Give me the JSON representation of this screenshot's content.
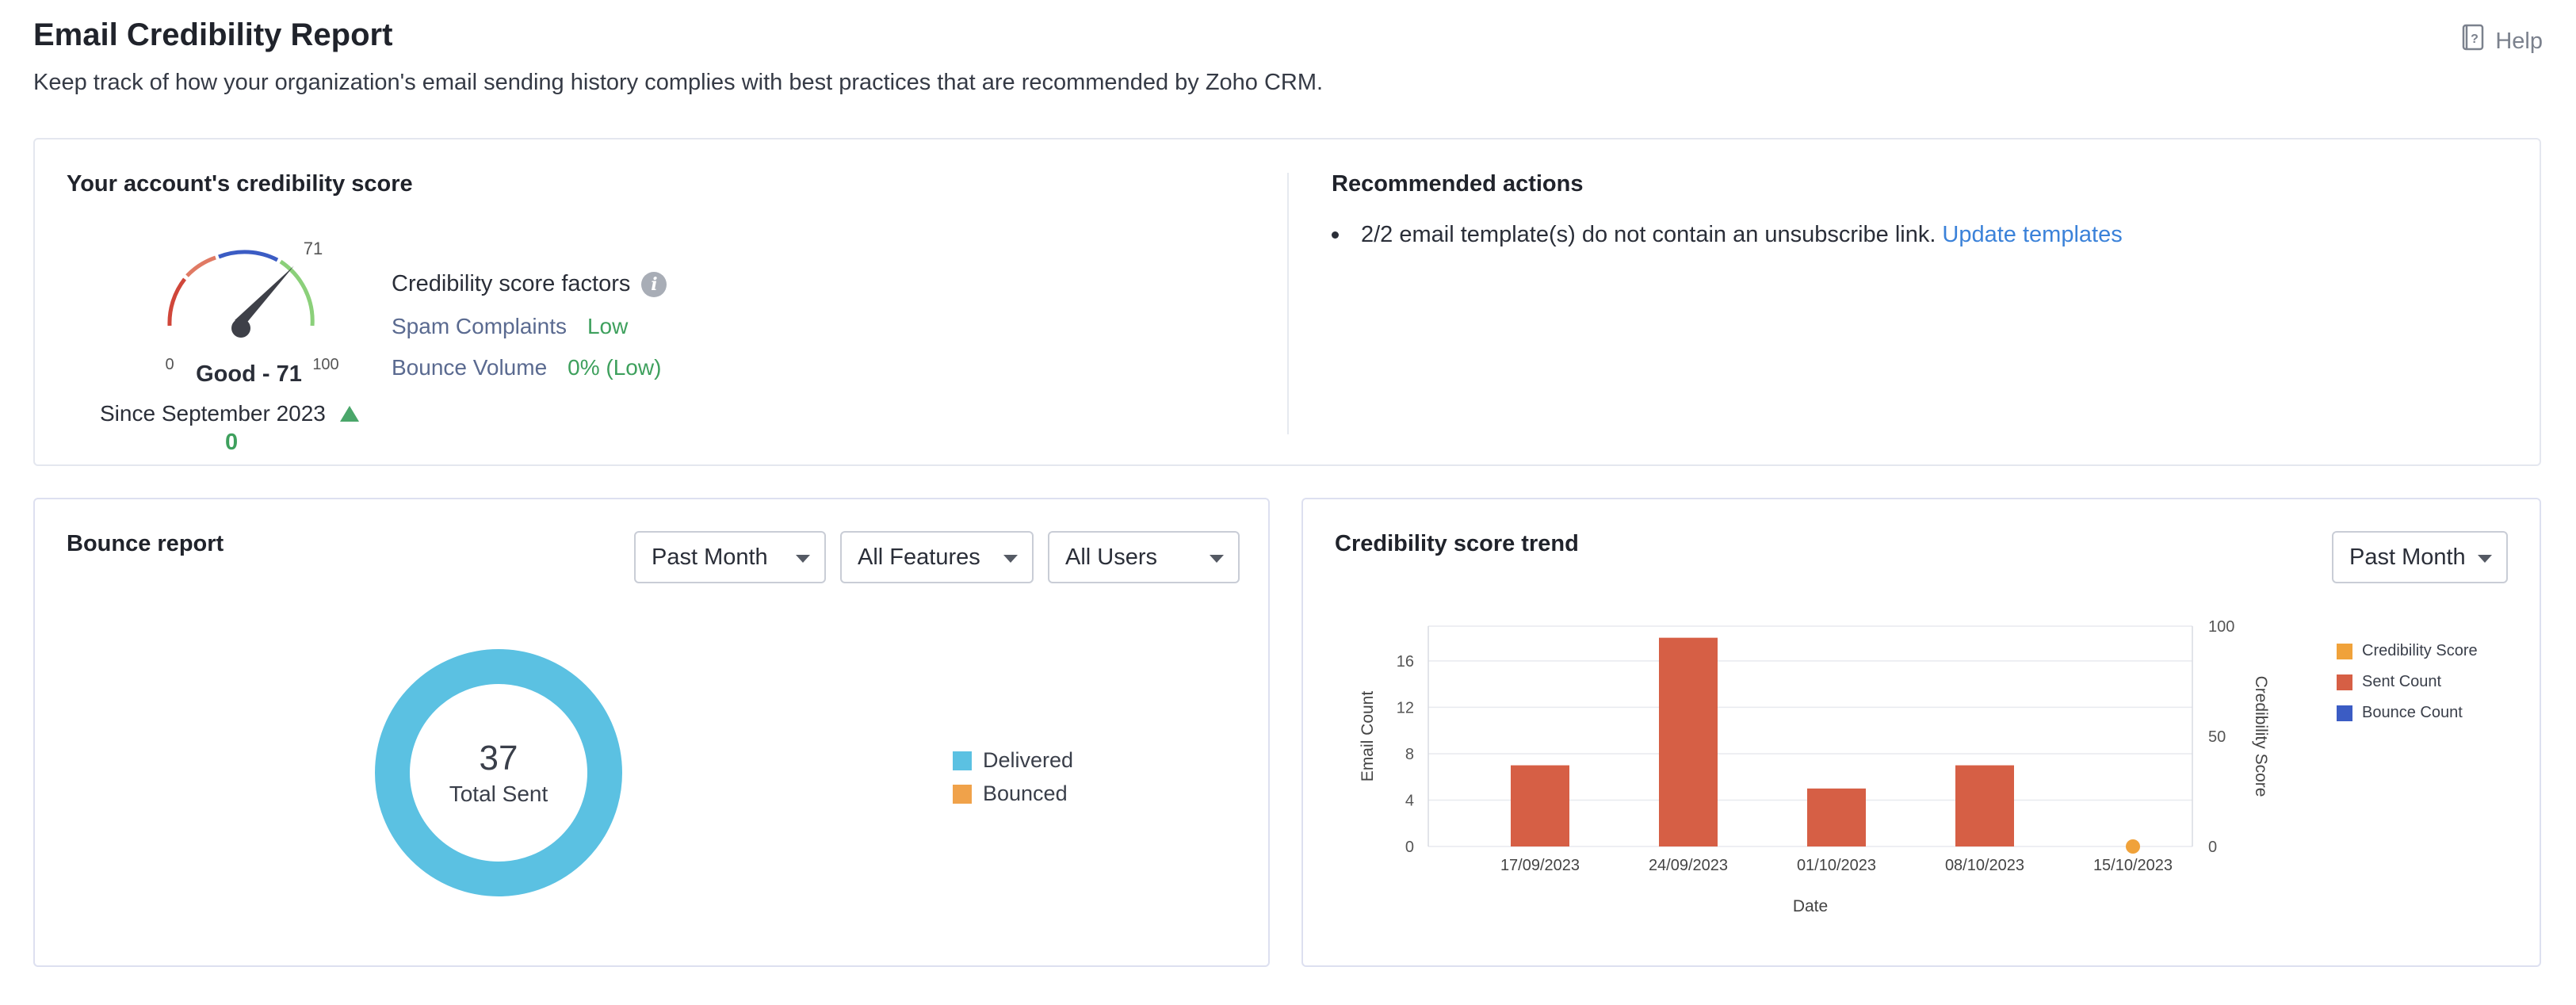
{
  "page": {
    "title": "Email Credibility Report",
    "subtitle": "Keep track of how your organization's email sending history complies with best practices that are recommended by Zoho CRM.",
    "help_label": "Help"
  },
  "score_card": {
    "title": "Your account's credibility score",
    "gauge": {
      "min": "0",
      "max": "100",
      "value": "71",
      "value_num": 71
    },
    "score_text": "Good - 71",
    "since": "Since September 2023",
    "delta": "0",
    "factors_title": "Credibility score factors",
    "factors": [
      {
        "label": "Spam Complaints",
        "value": "Low"
      },
      {
        "label": "Bounce Volume",
        "value": "0% (Low)"
      }
    ]
  },
  "recommended": {
    "title": "Recommended actions",
    "items": [
      {
        "text": "2/2 email template(s) do not contain an unsubscribe link.",
        "link": "Update templates"
      }
    ]
  },
  "bounce_report": {
    "title": "Bounce report",
    "filters": {
      "period": "Past Month",
      "features": "All Features",
      "users": "All Users"
    },
    "total": "37",
    "total_label": "Total Sent",
    "legend": [
      {
        "label": "Delivered",
        "color": "#5bc1e2"
      },
      {
        "label": "Bounced",
        "color": "#f0a24a"
      }
    ]
  },
  "trend": {
    "title": "Credibility score trend",
    "filter_period": "Past Month",
    "legend": [
      {
        "label": "Credibility Score",
        "color": "#f0a23a"
      },
      {
        "label": "Sent Count",
        "color": "#d65f45"
      },
      {
        "label": "Bounce Count",
        "color": "#3b5cc4"
      }
    ]
  },
  "chart_data": [
    {
      "type": "pie",
      "title": "",
      "categories": [
        "Delivered",
        "Bounced"
      ],
      "values": [
        37,
        0
      ],
      "colors": [
        "#5bc1e2",
        "#f0a24a"
      ],
      "center_text": "37 Total Sent",
      "legend_position": "right"
    },
    {
      "type": "bar",
      "title": "",
      "xlabel": "Date",
      "ylabel": "Email Count",
      "y2label": "Credibility Score",
      "categories": [
        "17/09/2023",
        "24/09/2023",
        "01/10/2023",
        "08/10/2023",
        "15/10/2023"
      ],
      "yticks": [
        0,
        4,
        8,
        12,
        16
      ],
      "y2ticks": [
        0,
        50,
        100
      ],
      "ylim": [
        0,
        19
      ],
      "y2lim": [
        0,
        100
      ],
      "grid": true,
      "legend_position": "right",
      "series": [
        {
          "name": "Sent Count",
          "color": "#d65f45",
          "values": [
            7,
            18,
            5,
            7,
            0
          ]
        },
        {
          "name": "Bounce Count",
          "color": "#3b5cc4",
          "values": [
            0,
            0,
            0,
            0,
            0
          ]
        },
        {
          "name": "Credibility Score",
          "color": "#f0a23a",
          "values": [
            null,
            null,
            null,
            null,
            0
          ]
        }
      ]
    }
  ]
}
